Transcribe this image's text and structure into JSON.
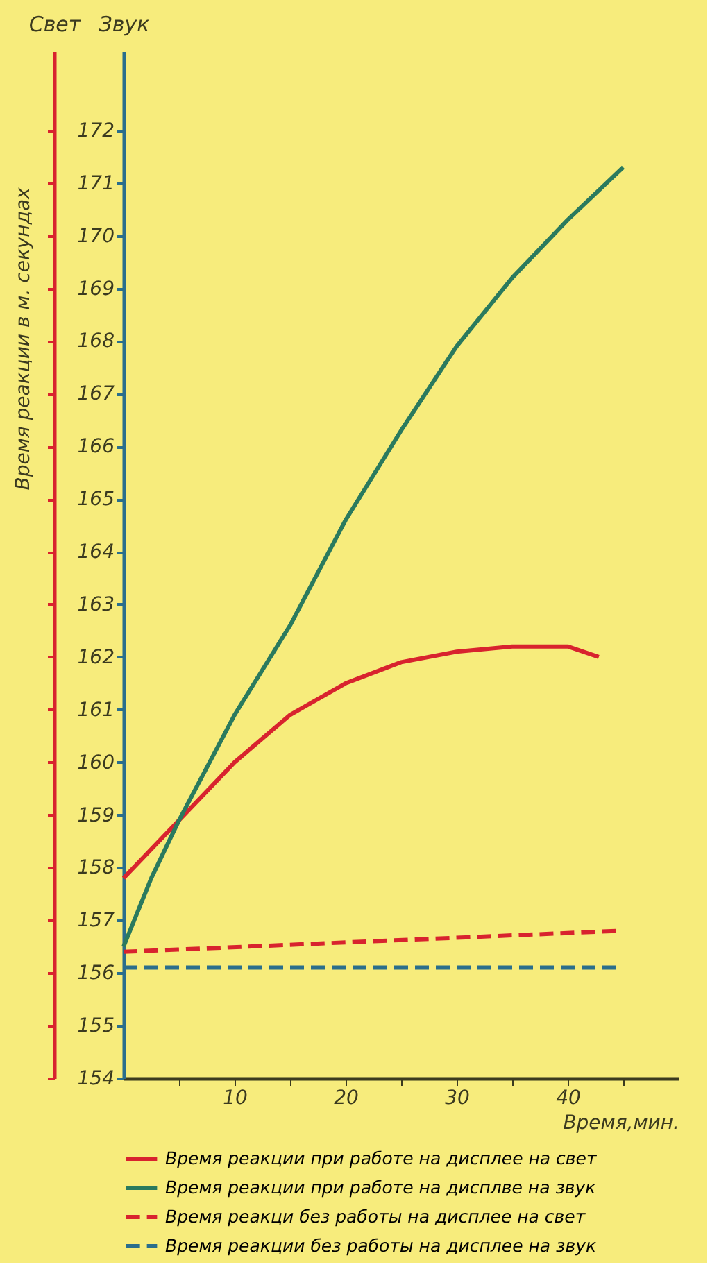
{
  "chart_data": {
    "type": "line",
    "xlabel": "Время,мин.",
    "ylabel": "Звук",
    "y2label": "Свет",
    "annotations": [
      "Время реакции в м. секундах"
    ],
    "xlim": [
      0,
      50
    ],
    "xticks": [
      {
        "value": 5,
        "label": null
      },
      10,
      {
        "value": 15,
        "label": null
      },
      20,
      {
        "value": 25,
        "label": null
      },
      30,
      {
        "value": 35,
        "label": null
      },
      40,
      {
        "value": 45,
        "label": null
      }
    ],
    "ylim": [
      154,
      173.5
    ],
    "yticks": [
      154,
      155,
      156,
      157,
      158,
      159,
      160,
      161,
      162,
      163,
      164,
      165,
      166,
      167,
      168,
      169,
      170,
      171,
      172
    ],
    "grid": false,
    "legend": "bottom",
    "series": [
      {
        "name": "Время реакции  при работе на дисплее на свет",
        "color": "#d8232e",
        "line_style": "solid",
        "x": [
          0,
          5,
          10,
          15,
          20,
          25,
          30,
          35,
          40,
          42.8
        ],
        "values": [
          157.8,
          158.9,
          160.0,
          160.9,
          161.5,
          161.9,
          162.1,
          162.2,
          162.2,
          162.0
        ]
      },
      {
        "name": "Время реакции при работе на дисплве на звук",
        "color": "#2a7a5e",
        "line_style": "solid",
        "x": [
          0,
          2.5,
          5,
          10,
          15,
          20,
          25,
          30,
          35,
          40,
          45
        ],
        "values": [
          156.5,
          157.8,
          158.9,
          160.9,
          162.6,
          164.6,
          166.3,
          167.9,
          169.2,
          170.3,
          171.3
        ]
      },
      {
        "name": "Время реакци без работы на дисплее на свет",
        "color": "#d8232e",
        "line_style": "dashed",
        "x": [
          0,
          44.7
        ],
        "values": [
          156.4,
          156.8
        ]
      },
      {
        "name": "Время реакции без работы на дисплее на звук",
        "color": "#2a6e8c",
        "line_style": "dashed",
        "x": [
          0,
          44.7
        ],
        "values": [
          156.1,
          156.1
        ]
      }
    ]
  }
}
